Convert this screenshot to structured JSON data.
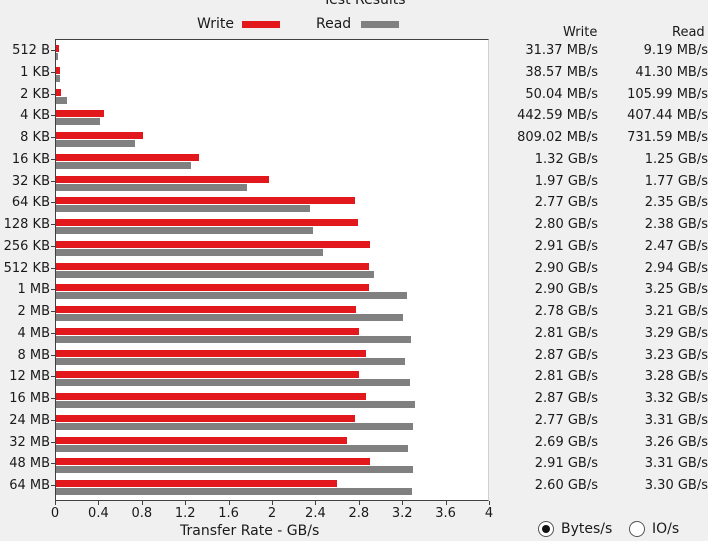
{
  "chart_data": {
    "type": "bar",
    "title": "Test Results",
    "xlabel": "Transfer Rate - GB/s",
    "ylabel": "",
    "xlim": [
      0,
      4
    ],
    "x_ticks": [
      "0",
      "0.4",
      "0.8",
      "1.2",
      "1.6",
      "2",
      "2.4",
      "2.8",
      "3.2",
      "3.6",
      "4"
    ],
    "legend_position": "top",
    "categories": [
      "512 B",
      "1 KB",
      "2 KB",
      "4 KB",
      "8 KB",
      "16 KB",
      "32 KB",
      "64 KB",
      "128 KB",
      "256 KB",
      "512 KB",
      "1 MB",
      "2 MB",
      "4 MB",
      "8 MB",
      "12 MB",
      "16 MB",
      "24 MB",
      "32 MB",
      "48 MB",
      "64 MB"
    ],
    "series": [
      {
        "name": "Write",
        "color": "#e3181d",
        "values": [
          0.03137,
          0.03857,
          0.05004,
          0.44259,
          0.80902,
          1.32,
          1.97,
          2.77,
          2.8,
          2.91,
          2.9,
          2.9,
          2.78,
          2.81,
          2.87,
          2.81,
          2.87,
          2.77,
          2.69,
          2.91,
          2.6
        ]
      },
      {
        "name": "Read",
        "color": "#808080",
        "values": [
          0.00919,
          0.0413,
          0.10599,
          0.40744,
          0.73159,
          1.25,
          1.77,
          2.35,
          2.38,
          2.47,
          2.94,
          3.25,
          3.21,
          3.29,
          3.23,
          3.28,
          3.32,
          3.31,
          3.26,
          3.31,
          3.3
        ]
      }
    ]
  },
  "table": {
    "write_header": "Write",
    "read_header": "Read",
    "write_values": [
      "31.37 MB/s",
      "38.57 MB/s",
      "50.04 MB/s",
      "442.59 MB/s",
      "809.02 MB/s",
      "1.32 GB/s",
      "1.97 GB/s",
      "2.77 GB/s",
      "2.80 GB/s",
      "2.91 GB/s",
      "2.90 GB/s",
      "2.90 GB/s",
      "2.78 GB/s",
      "2.81 GB/s",
      "2.87 GB/s",
      "2.81 GB/s",
      "2.87 GB/s",
      "2.77 GB/s",
      "2.69 GB/s",
      "2.91 GB/s",
      "2.60 GB/s"
    ],
    "read_values": [
      "9.19 MB/s",
      "41.30 MB/s",
      "105.99 MB/s",
      "407.44 MB/s",
      "731.59 MB/s",
      "1.25 GB/s",
      "1.77 GB/s",
      "2.35 GB/s",
      "2.38 GB/s",
      "2.47 GB/s",
      "2.94 GB/s",
      "3.25 GB/s",
      "3.21 GB/s",
      "3.29 GB/s",
      "3.23 GB/s",
      "3.28 GB/s",
      "3.32 GB/s",
      "3.31 GB/s",
      "3.26 GB/s",
      "3.31 GB/s",
      "3.30 GB/s"
    ]
  },
  "units": {
    "options": [
      "Bytes/s",
      "IO/s"
    ],
    "selected": "Bytes/s"
  }
}
